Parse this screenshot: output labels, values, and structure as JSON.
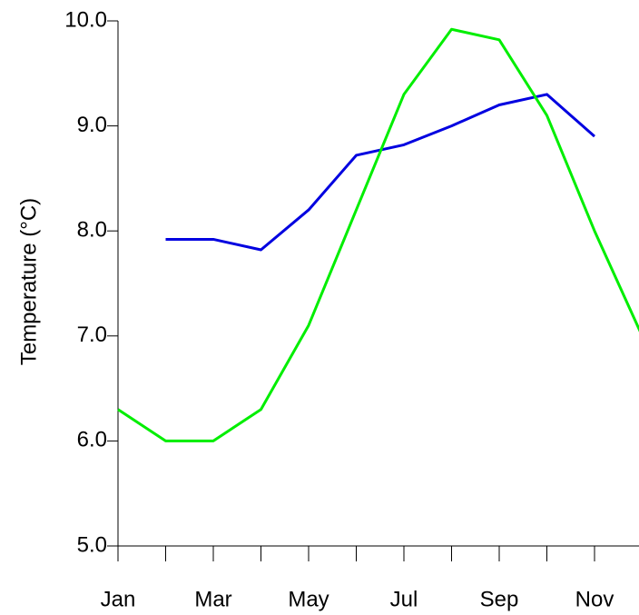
{
  "chart_data": {
    "type": "line",
    "y_label": "Temperature (°C)",
    "categories": [
      "Jan",
      null,
      "Mar",
      null,
      "May",
      null,
      "Jul",
      null,
      "Sep",
      null,
      "Nov",
      null
    ],
    "series": [
      {
        "color": "#0000e0",
        "values": [
          null,
          7.92,
          7.92,
          7.82,
          8.2,
          8.72,
          8.82,
          9.0,
          9.2,
          9.3,
          8.9,
          null
        ]
      },
      {
        "color": "#00ee00",
        "values": [
          6.3,
          6.0,
          6.0,
          6.3,
          7.1,
          8.2,
          9.3,
          9.92,
          9.82,
          9.1,
          8.0,
          7.0
        ]
      }
    ],
    "ylim": [
      5,
      10
    ],
    "yticks": [
      {
        "value": 5,
        "label": "5.0"
      },
      {
        "value": 6,
        "label": "6.0"
      },
      {
        "value": 7,
        "label": "7.0"
      },
      {
        "value": 8,
        "label": "8.0"
      },
      {
        "value": 9,
        "label": "9.0"
      },
      {
        "value": 10,
        "label": "10.0"
      }
    ],
    "grid": false
  }
}
